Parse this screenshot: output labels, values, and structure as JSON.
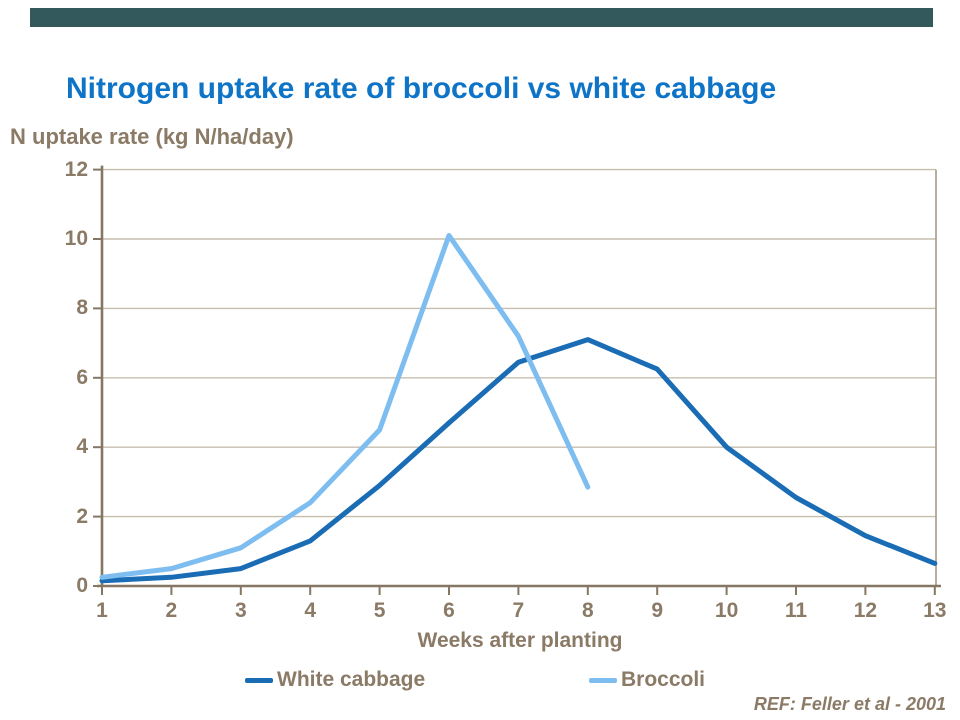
{
  "slide": {
    "title": "Nitrogen uptake rate of broccoli vs white cabbage",
    "reference": "REF: Feller et al - 2001"
  },
  "colors": {
    "accent_bar": "#33595C",
    "title_text": "#0d74c7",
    "axis_text": "#8A7A66",
    "axis_line": "#857763",
    "gridline": "#C7BEAE",
    "plot_right_border": "#A59B89",
    "white_cabbage_line": "#1A6CB5",
    "broccoli_line": "#7DBDF0"
  },
  "chart_data": {
    "type": "line",
    "title": "Nitrogen uptake rate of broccoli vs white cabbage",
    "xlabel": "Weeks after planting",
    "ylabel": "N uptake rate (kg N/ha/day)",
    "xlim": [
      1,
      13
    ],
    "ylim": [
      0,
      12
    ],
    "x_ticks": [
      1,
      2,
      3,
      4,
      5,
      6,
      7,
      8,
      9,
      10,
      11,
      12,
      13
    ],
    "y_ticks": [
      0,
      2,
      4,
      6,
      8,
      10,
      12
    ],
    "grid": "horizontal",
    "legend_position": "bottom",
    "series": [
      {
        "name": "White cabbage",
        "color": "#1A6CB5",
        "x": [
          1,
          2,
          3,
          4,
          5,
          6,
          7,
          8,
          9,
          10,
          11,
          12,
          13
        ],
        "values": [
          0.15,
          0.25,
          0.5,
          1.3,
          2.9,
          4.7,
          6.45,
          7.1,
          6.25,
          4.0,
          2.55,
          1.45,
          0.65
        ]
      },
      {
        "name": "Broccoli",
        "color": "#7DBDF0",
        "x": [
          1,
          2,
          3,
          4,
          5,
          6,
          7,
          8
        ],
        "values": [
          0.25,
          0.5,
          1.1,
          2.4,
          4.5,
          10.1,
          7.2,
          2.85
        ]
      }
    ]
  },
  "legend": {
    "items": [
      {
        "label": "White cabbage",
        "color": "#1A6CB5"
      },
      {
        "label": "Broccoli",
        "color": "#7DBDF0"
      }
    ]
  }
}
